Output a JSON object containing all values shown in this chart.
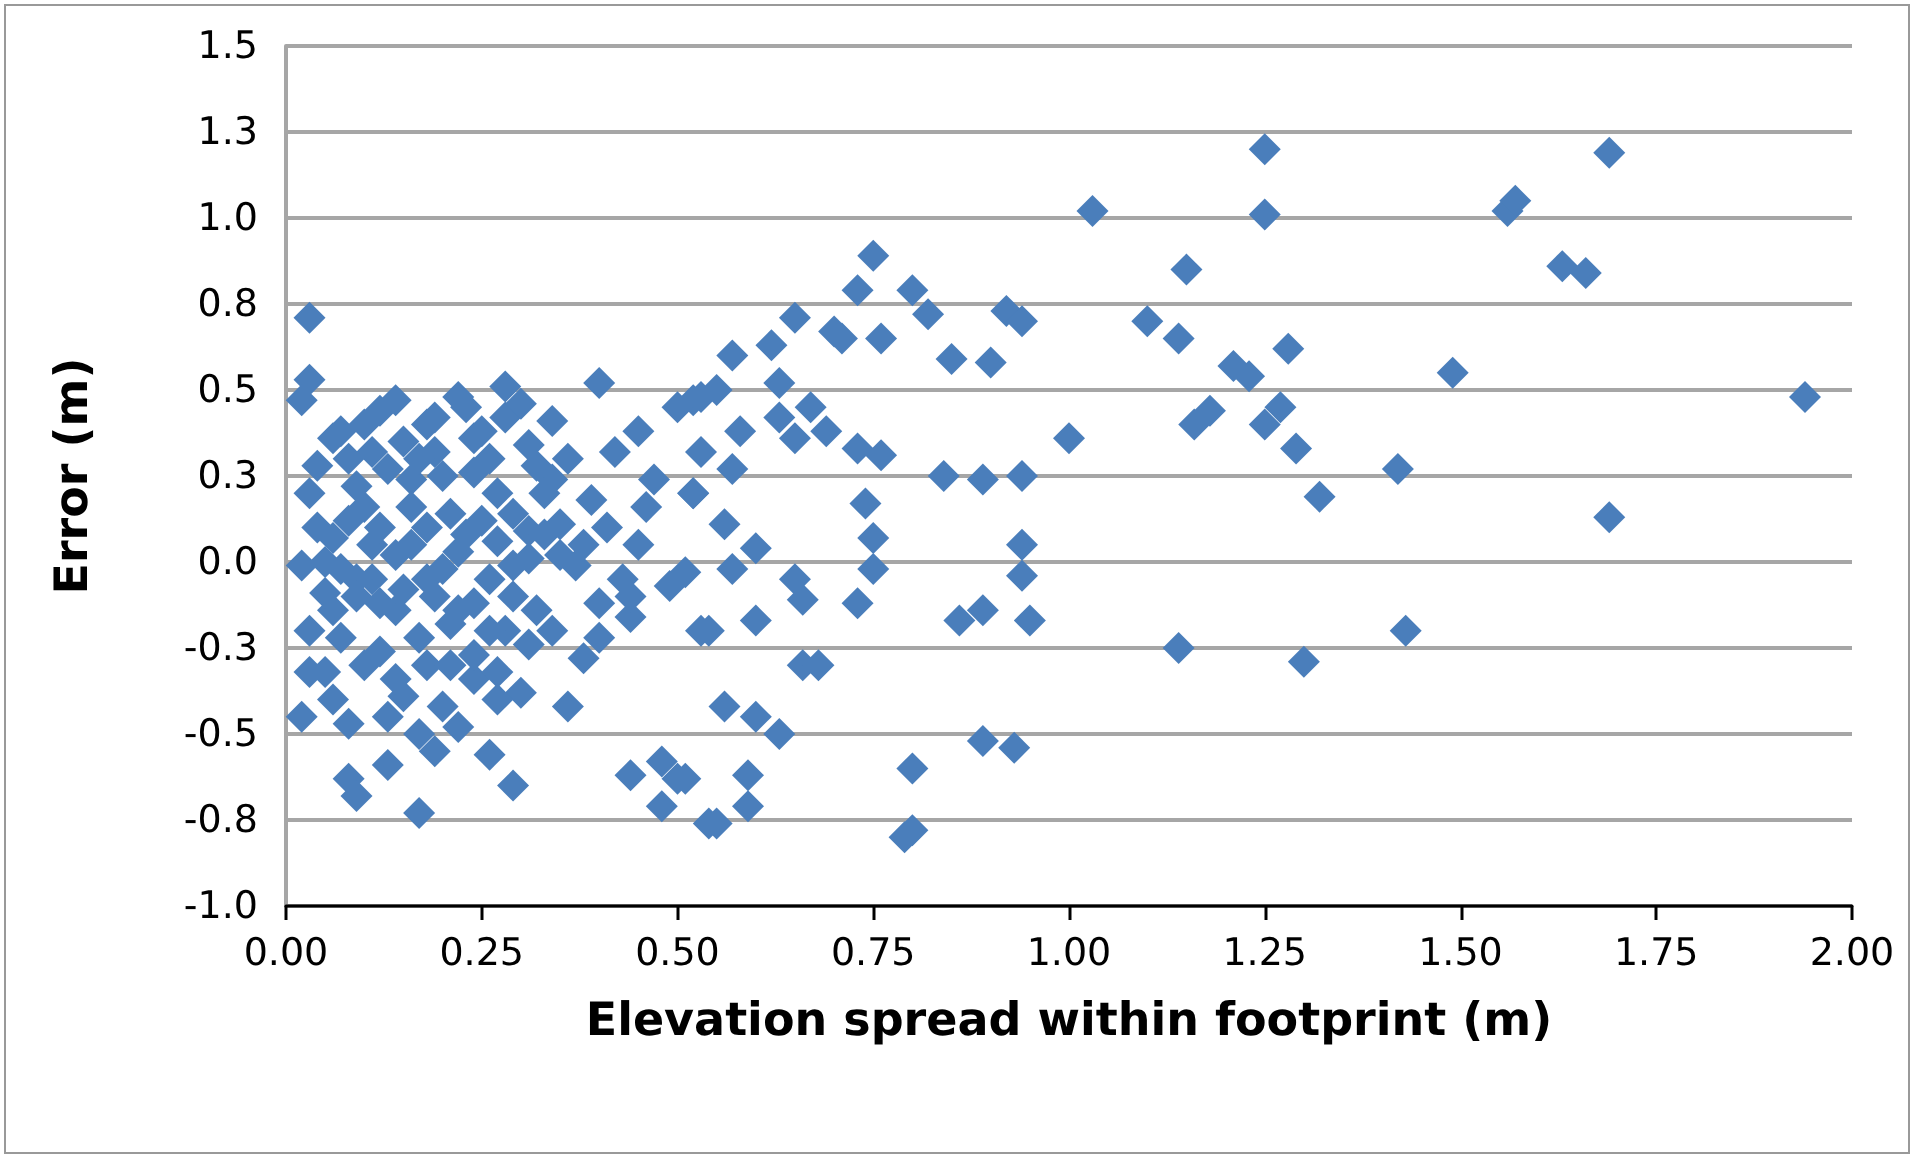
{
  "chart_data": {
    "type": "scatter",
    "xlabel": "Elevation spread within footprint (m)",
    "ylabel": "Error (m)",
    "marker": "diamond",
    "grid": "y",
    "xlim": [
      0,
      2
    ],
    "xticks": [
      {
        "value": 0,
        "label": "0.00"
      },
      {
        "value": 0.25,
        "label": "0.25"
      },
      {
        "value": 0.5,
        "label": "0.50"
      },
      {
        "value": 0.75,
        "label": "0.75"
      },
      {
        "value": 1,
        "label": "1.00"
      },
      {
        "value": 1.25,
        "label": "1.25"
      },
      {
        "value": 1.5,
        "label": "1.50"
      },
      {
        "value": 1.75,
        "label": "1.75"
      },
      {
        "value": 2,
        "label": "2.00"
      }
    ],
    "ylim": [
      -1,
      1.5
    ],
    "yticks": [
      {
        "value": -1,
        "label": "-1.0"
      },
      {
        "value": -0.75,
        "label": "-0.8"
      },
      {
        "value": -0.5,
        "label": "-0.5"
      },
      {
        "value": -0.25,
        "label": "-0.3"
      },
      {
        "value": 0,
        "label": "0.0"
      },
      {
        "value": 0.25,
        "label": "0.3"
      },
      {
        "value": 0.5,
        "label": "0.5"
      },
      {
        "value": 0.75,
        "label": "0.8"
      },
      {
        "value": 1,
        "label": "1.0"
      },
      {
        "value": 1.25,
        "label": "1.3"
      },
      {
        "value": 1.5,
        "label": "1.5"
      }
    ],
    "series": [
      {
        "color": "#4a7ebb",
        "x": [
          1.03,
          1.25,
          1.25,
          1.15,
          1.1,
          1.14,
          1.21,
          1.23,
          1.28,
          1.27,
          1.25,
          1.16,
          1.18,
          1.29,
          1.32,
          1.49,
          1.42,
          1.56,
          1.57,
          1.63,
          1.66,
          1.69,
          1.69,
          1.94,
          1.14,
          1.3,
          1.43,
          0.75,
          0.73,
          0.8,
          0.82,
          0.76,
          0.71,
          0.85,
          0.9,
          0.92,
          0.94,
          1.0,
          0.84,
          0.89,
          0.94,
          0.94,
          0.94,
          0.95,
          0.86,
          0.89,
          0.89,
          0.93,
          0.8,
          0.8,
          0.79,
          0.73,
          0.76,
          0.74,
          0.75,
          0.75,
          0.73,
          0.66,
          0.68,
          0.56,
          0.6,
          0.63,
          0.59,
          0.59,
          0.55,
          0.51,
          0.6,
          0.66,
          0.65,
          0.54,
          0.57,
          0.6,
          0.56,
          0.52,
          0.57,
          0.58,
          0.53,
          0.55,
          0.57,
          0.62,
          0.65,
          0.7,
          0.63,
          0.67,
          0.69,
          0.63,
          0.65,
          0.52,
          0.51,
          0.03,
          0.03,
          0.02,
          0.4,
          0.02,
          0.03,
          0.08,
          0.08,
          0.09,
          0.13,
          0.17,
          0.19,
          0.26,
          0.29,
          0.44,
          0.48,
          0.5,
          0.48,
          0.54,
          0.36,
          0.3,
          0.24,
          0.38,
          0.4,
          0.44,
          0.53,
          0.49,
          0.37,
          0.22,
          0.28,
          0.14,
          0.07,
          0.18,
          0.34,
          0.45,
          0.5,
          0.53,
          0.42,
          0.34,
          0.04,
          0.03,
          0.09,
          0.16,
          0.24,
          0.52,
          0.46,
          0.35,
          0.02,
          0.06,
          0.11,
          0.16,
          0.21,
          0.27,
          0.31,
          0.26,
          0.22,
          0.17,
          0.12,
          0.07,
          0.28,
          0.32,
          0.27,
          0.2,
          0.15,
          0.05,
          0.11,
          0.06,
          0.19,
          0.11,
          0.24,
          0.31,
          0.33,
          0.29,
          0.22,
          0.16,
          0.1,
          0.18,
          0.14,
          0.09,
          0.05,
          0.06,
          0.08,
          0.1,
          0.12,
          0.13,
          0.15,
          0.17,
          0.19,
          0.2,
          0.23,
          0.25,
          0.26,
          0.28,
          0.3,
          0.32,
          0.12,
          0.14,
          0.18,
          0.2,
          0.23,
          0.25,
          0.27,
          0.29,
          0.31,
          0.33,
          0.35,
          0.08,
          0.04,
          0.07,
          0.09,
          0.12,
          0.15,
          0.19,
          0.21,
          0.24,
          0.26,
          0.29,
          0.31,
          0.34,
          0.1,
          0.14,
          0.18,
          0.21,
          0.24,
          0.27,
          0.13,
          0.17,
          0.22,
          0.06,
          0.03,
          0.05,
          0.38,
          0.39,
          0.41,
          0.43,
          0.45,
          0.47,
          0.36,
          0.44,
          0.4
        ],
        "values": [
          1.02,
          1.2,
          1.01,
          0.85,
          0.7,
          0.65,
          0.57,
          0.54,
          0.62,
          0.45,
          0.4,
          0.4,
          0.44,
          0.33,
          0.19,
          0.55,
          0.27,
          1.02,
          1.05,
          0.86,
          0.84,
          1.19,
          0.13,
          0.48,
          -0.25,
          -0.29,
          -0.2,
          0.89,
          0.79,
          0.79,
          0.72,
          0.65,
          0.65,
          0.59,
          0.58,
          0.73,
          0.7,
          0.36,
          0.25,
          0.24,
          0.25,
          0.05,
          -0.04,
          -0.17,
          -0.17,
          -0.14,
          -0.52,
          -0.54,
          -0.6,
          -0.78,
          -0.8,
          0.33,
          0.31,
          0.17,
          0.07,
          -0.02,
          -0.12,
          -0.3,
          -0.3,
          -0.42,
          -0.45,
          -0.5,
          -0.62,
          -0.71,
          -0.76,
          -0.63,
          -0.17,
          -0.11,
          -0.05,
          -0.2,
          -0.02,
          0.04,
          0.11,
          0.2,
          0.27,
          0.38,
          0.32,
          0.5,
          0.6,
          0.63,
          0.71,
          0.67,
          0.52,
          0.45,
          0.38,
          0.42,
          0.36,
          0.47,
          -0.03,
          0.71,
          0.53,
          0.47,
          0.52,
          -0.45,
          -0.32,
          -0.47,
          -0.63,
          -0.68,
          -0.59,
          -0.73,
          -0.55,
          -0.56,
          -0.65,
          -0.62,
          -0.58,
          -0.63,
          -0.71,
          -0.76,
          -0.42,
          -0.38,
          -0.34,
          -0.28,
          -0.22,
          -0.16,
          -0.2,
          -0.07,
          -0.01,
          0.48,
          0.51,
          0.47,
          0.38,
          0.4,
          0.41,
          0.38,
          0.45,
          0.48,
          0.32,
          0.24,
          0.28,
          0.2,
          0.22,
          0.24,
          0.26,
          0.2,
          0.16,
          0.11,
          -0.01,
          -0.14,
          -0.05,
          0.05,
          0.14,
          0.2,
          0.09,
          -0.05,
          -0.14,
          -0.22,
          -0.26,
          -0.22,
          -0.2,
          -0.14,
          -0.32,
          -0.42,
          -0.39,
          -0.32,
          0.05,
          0.07,
          0.32,
          0.32,
          0.36,
          0.34,
          0.2,
          -0.01,
          0.03,
          0.16,
          0.16,
          -0.05,
          -0.14,
          -0.05,
          -0.09,
          0.36,
          0.3,
          0.4,
          0.44,
          0.27,
          0.35,
          0.3,
          0.42,
          0.25,
          0.45,
          0.38,
          0.3,
          0.42,
          0.46,
          0.28,
          0.1,
          0.02,
          0.1,
          -0.02,
          0.08,
          0.12,
          0.06,
          0.14,
          0.01,
          0.08,
          0.02,
          0.12,
          0.1,
          -0.02,
          -0.1,
          -0.12,
          -0.08,
          -0.1,
          -0.18,
          -0.12,
          -0.2,
          -0.1,
          -0.24,
          -0.2,
          -0.3,
          -0.34,
          -0.3,
          -0.3,
          -0.27,
          -0.4,
          -0.45,
          -0.5,
          -0.48,
          -0.4,
          -0.2,
          0.0,
          0.05,
          0.18,
          0.1,
          -0.05,
          0.05,
          0.24,
          0.3,
          -0.1,
          -0.12
        ]
      }
    ]
  }
}
